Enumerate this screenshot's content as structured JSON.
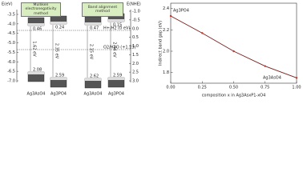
{
  "diagram": {
    "left_axis_label": "E(eV)",
    "right_axis_label": "E(NHE)",
    "left_ticks": [
      "-3.5",
      "-4.0",
      "-4.5",
      "-5.0",
      "-5.5",
      "-6.0",
      "-6.5",
      "-7.0"
    ],
    "right_ticks": [
      "-1.0",
      "-0.5",
      "0.0",
      "0.5",
      "1.0",
      "1.5",
      "2.0",
      "2.5",
      "3.0"
    ],
    "methods": [
      "Mulliken electronegativity method",
      "Band alignment method"
    ],
    "levels": [
      "H+/H2 (0 eV)",
      "O2/H2O (+1.23)"
    ],
    "groups": [
      {
        "compounds": [
          {
            "name": "Ag3AsO4",
            "cb": "0.46",
            "vb": "2.08",
            "gap": "1.62 eV"
          },
          {
            "name": "Ag3PO4",
            "cb": "0.24",
            "vb": "2.59",
            "gap": "2.35 eV"
          }
        ]
      },
      {
        "compounds": [
          {
            "name": "Ag3AsO4",
            "cb": "0.47",
            "vb": "2.62",
            "gap": "2.15 eV"
          },
          {
            "name": "Ag3PO4",
            "cb": "0.15",
            "vb": "2.59",
            "gap": "2.44 eV"
          }
        ]
      }
    ]
  },
  "chart_data": {
    "type": "line",
    "x_label": "composition x in Ag3AsxP1-xO4",
    "y_label": "Indirect band gap (eV)",
    "x": [
      0,
      0.25,
      0.5,
      0.75,
      1
    ],
    "series": [
      {
        "name": "Indirect band gap",
        "color": "#c0392b",
        "values": [
          2.33,
          2.17,
          2.0,
          1.86,
          1.75
        ]
      }
    ],
    "annotations": [
      "Ag3PO4",
      "Ag3AsO4"
    ],
    "xlim": [
      0,
      1
    ],
    "xticks": [
      {
        "value": 0,
        "label": "0.00"
      },
      0.25,
      {
        "value": 0.5,
        "label": "0.50"
      },
      0.75,
      {
        "value": 1,
        "label": "1.00"
      }
    ],
    "ylim": [
      1.7,
      2.45
    ],
    "yticks": [
      1.8,
      {
        "value": 2.0,
        "label": "2.0"
      },
      2.2,
      2.4
    ],
    "line_color": "#7a1f1f"
  }
}
